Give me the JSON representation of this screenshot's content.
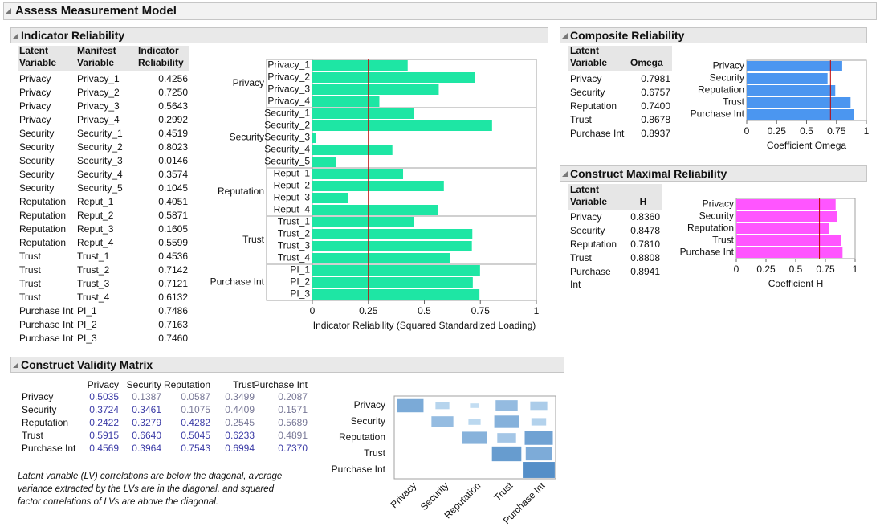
{
  "title": "Assess Measurement Model",
  "indicator_reliability": {
    "title": "Indicator Reliability",
    "headers": [
      "Latent Variable",
      "Manifest Variable",
      "Indicator Reliability"
    ],
    "rows": [
      [
        "Privacy",
        "Privacy_1",
        "0.4256"
      ],
      [
        "Privacy",
        "Privacy_2",
        "0.7250"
      ],
      [
        "Privacy",
        "Privacy_3",
        "0.5643"
      ],
      [
        "Privacy",
        "Privacy_4",
        "0.2992"
      ],
      [
        "Security",
        "Security_1",
        "0.4519"
      ],
      [
        "Security",
        "Security_2",
        "0.8023"
      ],
      [
        "Security",
        "Security_3",
        "0.0146"
      ],
      [
        "Security",
        "Security_4",
        "0.3574"
      ],
      [
        "Security",
        "Security_5",
        "0.1045"
      ],
      [
        "Reputation",
        "Reput_1",
        "0.4051"
      ],
      [
        "Reputation",
        "Reput_2",
        "0.5871"
      ],
      [
        "Reputation",
        "Reput_3",
        "0.1605"
      ],
      [
        "Reputation",
        "Reput_4",
        "0.5599"
      ],
      [
        "Trust",
        "Trust_1",
        "0.4536"
      ],
      [
        "Trust",
        "Trust_2",
        "0.7142"
      ],
      [
        "Trust",
        "Trust_3",
        "0.7121"
      ],
      [
        "Trust",
        "Trust_4",
        "0.6132"
      ],
      [
        "Purchase Int",
        "PI_1",
        "0.7486"
      ],
      [
        "Purchase Int",
        "PI_2",
        "0.7163"
      ],
      [
        "Purchase Int",
        "PI_3",
        "0.7460"
      ]
    ]
  },
  "composite_reliability": {
    "title": "Composite Reliability",
    "headers": [
      "Latent Variable",
      "Omega"
    ],
    "rows": [
      [
        "Privacy",
        "0.7981"
      ],
      [
        "Security",
        "0.6757"
      ],
      [
        "Reputation",
        "0.7400"
      ],
      [
        "Trust",
        "0.8678"
      ],
      [
        "Purchase Int",
        "0.8937"
      ]
    ]
  },
  "construct_maximal_reliability": {
    "title": "Construct Maximal Reliability",
    "headers": [
      "Latent Variable",
      "H"
    ],
    "rows": [
      [
        "Privacy",
        "0.8360"
      ],
      [
        "Security",
        "0.8478"
      ],
      [
        "Reputation",
        "0.7810"
      ],
      [
        "Trust",
        "0.8808"
      ],
      [
        "Purchase Int",
        "0.8941"
      ]
    ]
  },
  "construct_validity_matrix": {
    "title": "Construct Validity Matrix",
    "headers": [
      "Privacy",
      "Security",
      "Reputation",
      "Trust",
      "Purchase Int"
    ],
    "rows": [
      [
        "Privacy",
        "0.5035",
        "0.1387",
        "0.0587",
        "0.3499",
        "0.2087"
      ],
      [
        "Security",
        "0.3724",
        "0.3461",
        "0.1075",
        "0.4409",
        "0.1571"
      ],
      [
        "Reputation",
        "0.2422",
        "0.3279",
        "0.4282",
        "0.2545",
        "0.5689"
      ],
      [
        "Trust",
        "0.5915",
        "0.6640",
        "0.5045",
        "0.6233",
        "0.4891"
      ],
      [
        "Purchase Int",
        "0.4569",
        "0.3964",
        "0.7543",
        "0.6994",
        "0.7370"
      ]
    ],
    "note": "Latent variable (LV) correlations are below the diagonal, average variance extracted by the LVs are in the diagonal, and squared factor correlations of LVs are above the diagonal."
  },
  "chart_data": [
    {
      "type": "bar",
      "orientation": "horizontal",
      "groups": [
        "Privacy",
        "Privacy",
        "Privacy",
        "Privacy",
        "Security",
        "Security",
        "Security",
        "Security",
        "Security",
        "Reputation",
        "Reputation",
        "Reputation",
        "Reputation",
        "Trust",
        "Trust",
        "Trust",
        "Trust",
        "Purchase Int",
        "Purchase Int",
        "Purchase Int"
      ],
      "categories": [
        "Privacy_1",
        "Privacy_2",
        "Privacy_3",
        "Privacy_4",
        "Security_1",
        "Security_2",
        "Security_3",
        "Security_4",
        "Security_5",
        "Reput_1",
        "Reput_2",
        "Reput_3",
        "Reput_4",
        "Trust_1",
        "Trust_2",
        "Trust_3",
        "Trust_4",
        "PI_1",
        "PI_2",
        "PI_3"
      ],
      "values": [
        0.4256,
        0.725,
        0.5643,
        0.2992,
        0.4519,
        0.8023,
        0.0146,
        0.3574,
        0.1045,
        0.4051,
        0.5871,
        0.1605,
        0.5599,
        0.4536,
        0.7142,
        0.7121,
        0.6132,
        0.7486,
        0.7163,
        0.746
      ],
      "color": "#1ee6a4",
      "xlim": [
        0,
        1
      ],
      "xticks": [
        0,
        0.25,
        0.5,
        0.75,
        1
      ],
      "xlabel": "Indicator Reliability (Squared Standardized Loading)",
      "reference_line": 0.25,
      "reference_color": "#c00000"
    },
    {
      "type": "bar",
      "orientation": "horizontal",
      "categories": [
        "Privacy",
        "Security",
        "Reputation",
        "Trust",
        "Purchase Int"
      ],
      "values": [
        0.7981,
        0.6757,
        0.74,
        0.8678,
        0.8937
      ],
      "color": "#4b96f0",
      "xlim": [
        0,
        1
      ],
      "xticks": [
        0,
        0.25,
        0.5,
        0.75,
        1
      ],
      "xlabel": "Coefficient Omega",
      "reference_line": 0.7,
      "reference_color": "#c00000"
    },
    {
      "type": "bar",
      "orientation": "horizontal",
      "categories": [
        "Privacy",
        "Security",
        "Reputation",
        "Trust",
        "Purchase Int"
      ],
      "values": [
        0.836,
        0.8478,
        0.781,
        0.8808,
        0.8941
      ],
      "color": "#ff55ff",
      "xlim": [
        0,
        1
      ],
      "xticks": [
        0,
        0.25,
        0.5,
        0.75,
        1
      ],
      "xlabel": "Coefficient H",
      "reference_line": 0.7,
      "reference_color": "#c00000"
    },
    {
      "type": "heatmap",
      "categories": [
        "Privacy",
        "Security",
        "Reputation",
        "Trust",
        "Purchase Int"
      ],
      "values": [
        [
          0.5035,
          0.1387,
          0.0587,
          0.3499,
          0.2087
        ],
        [
          null,
          0.3461,
          0.1075,
          0.4409,
          0.1571
        ],
        [
          null,
          null,
          0.4282,
          0.2545,
          0.5689
        ],
        [
          null,
          null,
          null,
          0.6233,
          0.4891
        ],
        [
          null,
          null,
          null,
          null,
          0.737
        ]
      ],
      "color": "#2a70b8"
    }
  ]
}
